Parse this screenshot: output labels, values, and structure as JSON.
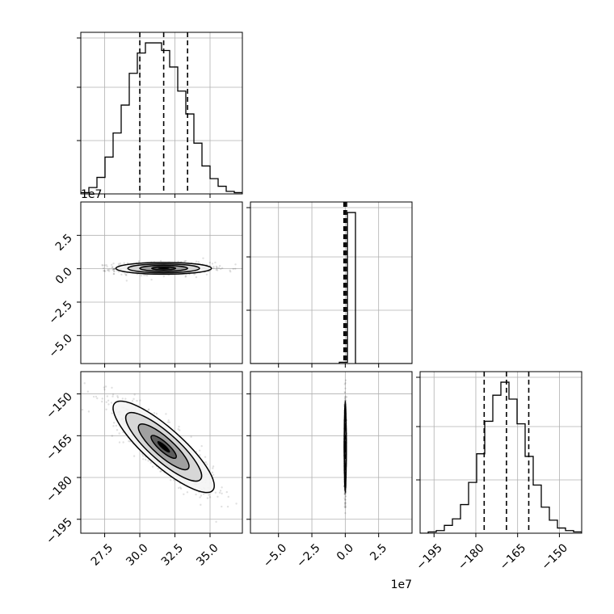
{
  "chart_data": {
    "type": "corner",
    "grid": true,
    "axis_offset_labels": {
      "x_middle": "1e7",
      "y_middle_row": "1e7"
    },
    "parameters": [
      {
        "xlim": [
          25.8,
          37.3
        ],
        "ticks": [
          27.5,
          30.0,
          32.5,
          35.0
        ],
        "tick_labels": [
          "27.5",
          "30.0",
          "32.5",
          "35.0"
        ],
        "quantiles": [
          30.0,
          31.7,
          33.4
        ]
      },
      {
        "xlim": [
          -71000000.0,
          50000000.0
        ],
        "ticks": [
          -50000000.0,
          -25000000.0,
          0,
          25000000.0
        ],
        "tick_labels": [
          "−5.0",
          "−2.5",
          "0.0",
          "2.5"
        ],
        "y_tick_labels": [
          "−5.0",
          "−2.5",
          "0.0",
          "2.5"
        ],
        "quantiles": [
          -1000000.0,
          0.0,
          1000000.0
        ]
      },
      {
        "xlim": [
          -200,
          -142
        ],
        "ticks": [
          -195,
          -180,
          -165,
          -150
        ],
        "tick_labels": [
          "−195",
          "−180",
          "−165",
          "−150"
        ],
        "y_tick_labels": [
          "−195",
          "−180",
          "−165",
          "−150"
        ],
        "quantiles": [
          -177,
          -169,
          -161
        ]
      }
    ],
    "histograms": [
      {
        "parameter": 0,
        "bin_start": 25.8,
        "bin_width": 0.575,
        "counts": [
          1,
          5,
          13,
          29,
          48,
          70,
          95,
          111,
          119,
          119,
          113,
          100,
          81,
          63,
          40,
          22,
          12,
          6,
          2,
          1
        ]
      },
      {
        "parameter": 1,
        "bin_start": -71000000.0,
        "bin_width": 6050000.0,
        "counts": [
          0,
          0,
          0,
          0,
          0,
          0,
          0,
          0,
          0,
          0,
          0,
          1,
          120,
          0,
          0,
          0,
          0,
          0,
          0,
          0
        ]
      },
      {
        "parameter": 2,
        "bin_start": -200,
        "bin_width": 2.9,
        "counts": [
          0,
          1,
          2,
          6,
          11,
          22,
          39,
          61,
          86,
          106,
          116,
          103,
          84,
          59,
          37,
          20,
          10,
          4,
          2,
          1
        ]
      }
    ],
    "joint_distributions": [
      {
        "x_param": 0,
        "y_param": 1,
        "mean": [
          31.7,
          300000.0
        ],
        "sd": [
          1.7,
          2200000.0
        ],
        "corr": 0.0
      },
      {
        "x_param": 0,
        "y_param": 2,
        "mean": [
          31.7,
          -169
        ],
        "sd": [
          1.8,
          8.2
        ],
        "corr": -0.85
      },
      {
        "x_param": 1,
        "y_param": 2,
        "mean": [
          0.0,
          -169
        ],
        "sd": [
          300000.0,
          8.2
        ],
        "corr": 0.0
      }
    ],
    "contour_levels_sigma": [
      0.5,
      1.0,
      1.5,
      2.0
    ],
    "fill_colors": [
      "#000000",
      "#555555",
      "#9a9a9a",
      "#d4d4d4",
      "#f4f4f4"
    ]
  }
}
